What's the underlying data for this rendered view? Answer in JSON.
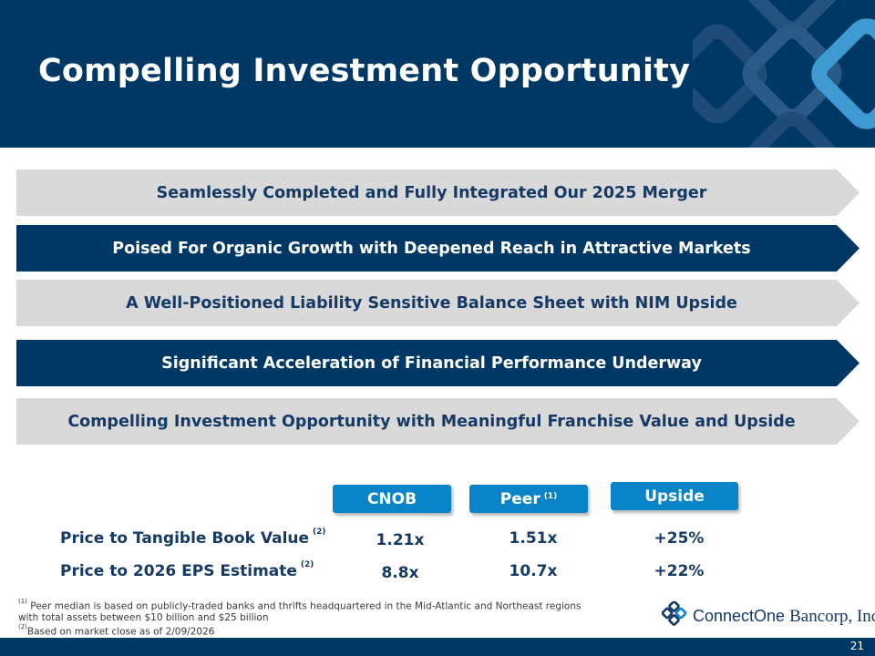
{
  "header": {
    "title": "Compelling Investment Opportunity"
  },
  "banners": [
    {
      "label": "Seamlessly Completed and Fully Integrated Our 2025 Merger",
      "style": "light"
    },
    {
      "label": "Poised For Organic Growth with Deepened Reach in Attractive Markets",
      "style": "dark"
    },
    {
      "label": "A Well-Positioned Liability Sensitive Balance Sheet with NIM Upside",
      "style": "light"
    },
    {
      "label": "Significant Acceleration of Financial Performance Underway",
      "style": "dark"
    },
    {
      "label": "Compelling Investment Opportunity with Meaningful Franchise Value and Upside",
      "style": "light"
    }
  ],
  "table": {
    "columns": [
      {
        "label": "CNOB",
        "note": ""
      },
      {
        "label": "Peer",
        "note": "(1)"
      },
      {
        "label": "Upside",
        "note": ""
      }
    ],
    "rows": [
      {
        "label": "Price to Tangible Book Value",
        "note": "(2)",
        "values": [
          "1.21x",
          "1.51x",
          "+25%"
        ]
      },
      {
        "label": "Price to 2026 EPS Estimate",
        "note": "(2)",
        "values": [
          "8.8x",
          "10.7x",
          "+22%"
        ]
      }
    ]
  },
  "footnotes": {
    "note1_marker": "(1)",
    "note1_line1": "Peer median is based on publicly-traded banks and thrifts headquartered in the Mid-Atlantic and Northeast regions",
    "note1_line2": "with total assets between $10 billion and $25 billion",
    "note2_marker": "(2)",
    "note2_line1": "Based on market close as of 2/09/2026"
  },
  "logo": {
    "word1": "ConnectOne",
    "word2": "Bancorp, Inc."
  },
  "page_number": "21",
  "colors": {
    "navy": "#003865",
    "banner_light": "#d9d9d9",
    "banner_dark": "#003865",
    "accent_blue": "#0a84c8"
  }
}
